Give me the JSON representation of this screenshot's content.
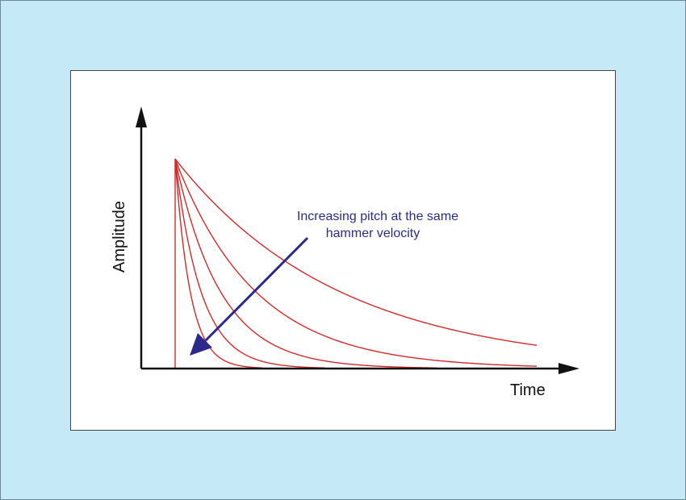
{
  "chart_data": {
    "type": "line",
    "title": "",
    "xlabel": "Time",
    "ylabel": "Amplitude",
    "grid": false,
    "legend": "none",
    "xlim": [
      0,
      1
    ],
    "ylim": [
      0,
      1
    ],
    "strike_time": 0.0,
    "series": [
      {
        "decay_rate": 2.2
      },
      {
        "decay_rate": 4.5
      },
      {
        "decay_rate": 8.0
      },
      {
        "decay_rate": 14.0
      },
      {
        "decay_rate": 24.0
      }
    ],
    "annotation": {
      "lines": [
        "Increasing pitch at the same",
        "hammer velocity"
      ],
      "arrow_direction": "down-left"
    }
  },
  "colors": {
    "background": "#c6e9f8",
    "curve": "#d42a2a",
    "axis": "#111111",
    "annotation": "#2b2a8a"
  }
}
